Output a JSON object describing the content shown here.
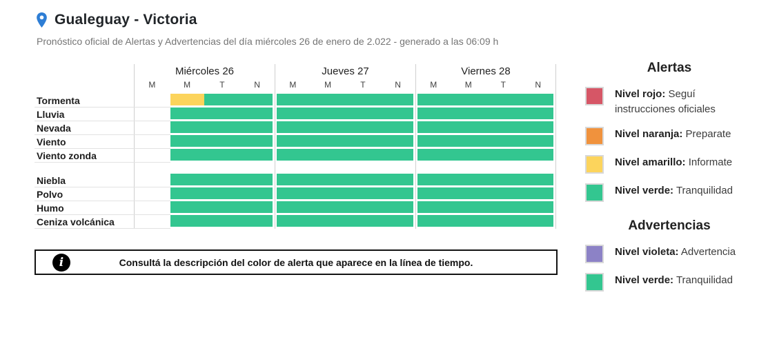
{
  "header": {
    "title": "Gualeguay - Victoria",
    "subtitle": "Pronóstico oficial de Alertas y Advertencias del día miércoles 26 de enero de 2.022 - generado a las 06:09 h"
  },
  "colors": {
    "green": "#33c690",
    "yellow": "#fcd45c",
    "orange": "#f0923d",
    "red": "#d65666",
    "violet": "#8c82c6",
    "none": "transparent",
    "pin_blue": "#2e7ed5"
  },
  "chart": {
    "days": [
      {
        "label": "Miércoles 26",
        "periods": [
          "M",
          "M",
          "T",
          "N"
        ]
      },
      {
        "label": "Jueves 27",
        "periods": [
          "M",
          "M",
          "T",
          "N"
        ]
      },
      {
        "label": "Viernes 28",
        "periods": [
          "M",
          "M",
          "T",
          "N"
        ]
      }
    ],
    "groups": [
      {
        "rows": [
          {
            "label": "Tormenta",
            "days": [
              [
                [
                  "none",
                  1
                ],
                [
                  "yellow",
                  1
                ],
                [
                  "green",
                  2
                ]
              ],
              [
                [
                  "green",
                  4
                ]
              ],
              [
                [
                  "green",
                  4
                ]
              ]
            ]
          },
          {
            "label": "Lluvia",
            "days": [
              [
                [
                  "none",
                  1
                ],
                [
                  "green",
                  3
                ]
              ],
              [
                [
                  "green",
                  4
                ]
              ],
              [
                [
                  "green",
                  4
                ]
              ]
            ]
          },
          {
            "label": "Nevada",
            "days": [
              [
                [
                  "none",
                  1
                ],
                [
                  "green",
                  3
                ]
              ],
              [
                [
                  "green",
                  4
                ]
              ],
              [
                [
                  "green",
                  4
                ]
              ]
            ]
          },
          {
            "label": "Viento",
            "days": [
              [
                [
                  "none",
                  1
                ],
                [
                  "green",
                  3
                ]
              ],
              [
                [
                  "green",
                  4
                ]
              ],
              [
                [
                  "green",
                  4
                ]
              ]
            ]
          },
          {
            "label": "Viento zonda",
            "days": [
              [
                [
                  "none",
                  1
                ],
                [
                  "green",
                  3
                ]
              ],
              [
                [
                  "green",
                  4
                ]
              ],
              [
                [
                  "green",
                  4
                ]
              ]
            ]
          }
        ]
      },
      {
        "rows": [
          {
            "label": "Niebla",
            "days": [
              [
                [
                  "none",
                  1
                ],
                [
                  "green",
                  3
                ]
              ],
              [
                [
                  "green",
                  4
                ]
              ],
              [
                [
                  "green",
                  4
                ]
              ]
            ]
          },
          {
            "label": "Polvo",
            "days": [
              [
                [
                  "none",
                  1
                ],
                [
                  "green",
                  3
                ]
              ],
              [
                [
                  "green",
                  4
                ]
              ],
              [
                [
                  "green",
                  4
                ]
              ]
            ]
          },
          {
            "label": "Humo",
            "days": [
              [
                [
                  "none",
                  1
                ],
                [
                  "green",
                  3
                ]
              ],
              [
                [
                  "green",
                  4
                ]
              ],
              [
                [
                  "green",
                  4
                ]
              ]
            ]
          },
          {
            "label": "Ceniza volcánica",
            "days": [
              [
                [
                  "none",
                  1
                ],
                [
                  "green",
                  3
                ]
              ],
              [
                [
                  "green",
                  4
                ]
              ],
              [
                [
                  "green",
                  4
                ]
              ]
            ]
          }
        ]
      }
    ]
  },
  "info": {
    "icon": "i",
    "text": "Consultá la descripción del color de alerta que aparece en la línea de tiempo."
  },
  "legend": {
    "sections": [
      {
        "heading": "Alertas",
        "items": [
          {
            "color": "red",
            "title": "Nivel rojo:",
            "desc": " Seguí instrucciones oficiales"
          },
          {
            "color": "orange",
            "title": "Nivel naranja:",
            "desc": " Preparate"
          },
          {
            "color": "yellow",
            "title": "Nivel amarillo:",
            "desc": " Informate"
          },
          {
            "color": "green",
            "title": "Nivel verde:",
            "desc": " Tranquilidad"
          }
        ]
      },
      {
        "heading": "Advertencias",
        "items": [
          {
            "color": "violet",
            "title": "Nivel violeta:",
            "desc": " Advertencia"
          },
          {
            "color": "green",
            "title": "Nivel verde:",
            "desc": " Tranquilidad"
          }
        ]
      }
    ]
  }
}
